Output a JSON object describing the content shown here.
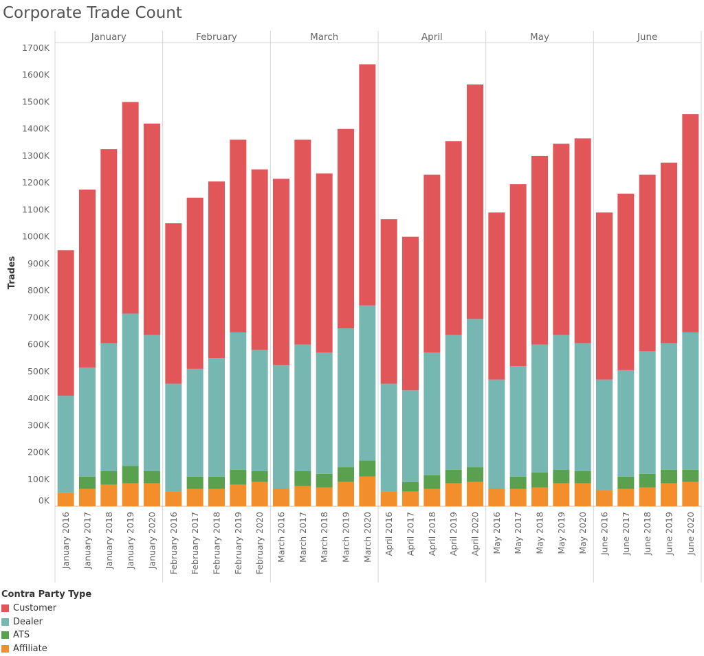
{
  "chart_data": {
    "type": "bar",
    "stacked": true,
    "title": "Corporate Trade Count",
    "ylabel": "Trades",
    "ylim": [
      0,
      1700
    ],
    "y_ticks": [
      0,
      100,
      200,
      300,
      400,
      500,
      600,
      700,
      800,
      900,
      1000,
      1100,
      1200,
      1300,
      1400,
      1500,
      1600,
      1700
    ],
    "y_tick_labels": [
      "0K",
      "100K",
      "200K",
      "300K",
      "400K",
      "500K",
      "600K",
      "700K",
      "800K",
      "900K",
      "1000K",
      "1100K",
      "1200K",
      "1300K",
      "1400K",
      "1500K",
      "1600K",
      "1700K"
    ],
    "y_unit": "thousands of trades",
    "grid": false,
    "legend_position": "bottom-left",
    "legend_title": "Contra Party Type",
    "groups": [
      {
        "label": "January",
        "categories": [
          "January 2016",
          "January 2017",
          "January 2018",
          "January 2019",
          "January 2020"
        ]
      },
      {
        "label": "February",
        "categories": [
          "February 2016",
          "February 2017",
          "February 2018",
          "February 2019",
          "February 2020"
        ]
      },
      {
        "label": "March",
        "categories": [
          "March 2016",
          "March 2017",
          "March 2018",
          "March 2019",
          "March 2020"
        ]
      },
      {
        "label": "April",
        "categories": [
          "April 2016",
          "April 2017",
          "April 2018",
          "April 2019",
          "April 2020"
        ]
      },
      {
        "label": "May",
        "categories": [
          "May 2016",
          "May 2017",
          "May 2018",
          "May 2019",
          "May 2020"
        ]
      },
      {
        "label": "June",
        "categories": [
          "June 2016",
          "June 2017",
          "June 2018",
          "June 2019",
          "June 2020"
        ]
      }
    ],
    "series": [
      {
        "name": "Affiliate",
        "color": "#f28e2b",
        "values": [
          50,
          65,
          80,
          85,
          85,
          55,
          65,
          65,
          80,
          90,
          65,
          75,
          70,
          90,
          110,
          55,
          55,
          65,
          85,
          90,
          65,
          65,
          70,
          85,
          85,
          60,
          65,
          70,
          85,
          90
        ]
      },
      {
        "name": "ATS",
        "color": "#59a14f",
        "values": [
          0,
          45,
          50,
          65,
          45,
          0,
          45,
          45,
          55,
          40,
          0,
          55,
          50,
          55,
          60,
          0,
          35,
          50,
          50,
          55,
          0,
          45,
          55,
          50,
          45,
          0,
          45,
          50,
          50,
          45
        ]
      },
      {
        "name": "Dealer",
        "color": "#76b7b2",
        "values": [
          360,
          405,
          475,
          565,
          505,
          400,
          400,
          440,
          510,
          450,
          460,
          470,
          450,
          515,
          575,
          400,
          340,
          455,
          500,
          550,
          405,
          410,
          475,
          500,
          475,
          410,
          395,
          455,
          470,
          510
        ]
      },
      {
        "name": "Customer",
        "color": "#e15759",
        "values": [
          540,
          660,
          720,
          785,
          785,
          595,
          635,
          655,
          715,
          670,
          690,
          760,
          665,
          740,
          895,
          610,
          570,
          660,
          720,
          870,
          620,
          675,
          700,
          710,
          760,
          620,
          655,
          655,
          670,
          810
        ]
      }
    ]
  }
}
